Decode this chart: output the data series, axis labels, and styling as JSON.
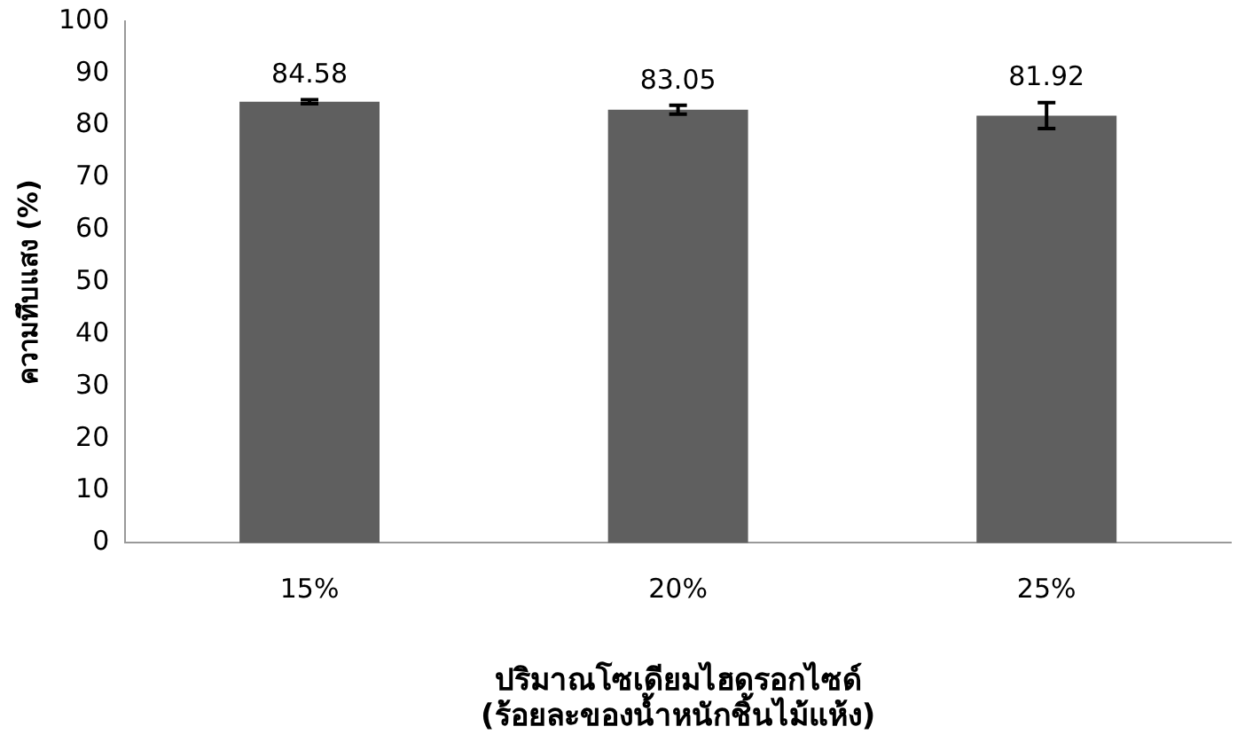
{
  "chart_data": {
    "type": "bar",
    "categories": [
      "15%",
      "20%",
      "25%"
    ],
    "values": [
      84.58,
      83.05,
      81.92
    ],
    "color": "#5f5f5f",
    "errors": [
      0.4,
      0.85,
      2.5
    ],
    "data_labels": true,
    "ylabel": "ความทึบแสง (%)",
    "xlabel": "ปริมาณโซเดียมไฮดรอกไซด์\n(ร้อยละของน้ำหนักชิ้นไม้แห้ง)",
    "ylim": [
      0,
      100
    ],
    "yticks": [
      0,
      10,
      20,
      30,
      40,
      50,
      60,
      70,
      80,
      90,
      100
    ],
    "grid": false,
    "legend": false
  }
}
